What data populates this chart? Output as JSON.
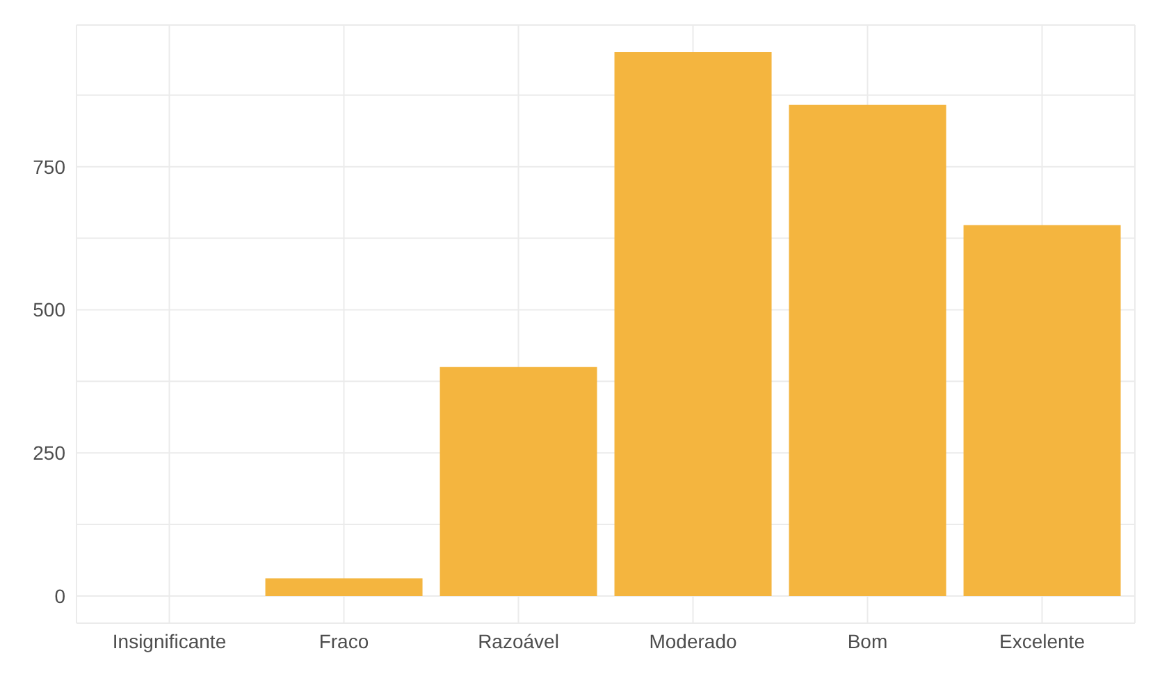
{
  "chart_data": {
    "type": "bar",
    "categories": [
      "Insignificante",
      "Fraco",
      "Razoável",
      "Moderado",
      "Bom",
      "Excelente"
    ],
    "values": [
      0,
      31,
      400,
      950,
      858,
      648
    ],
    "color": "#f4b53f",
    "ylim": [
      -47.5,
      997.5
    ],
    "yticks": [
      0,
      {
        "value": 125,
        "label": null
      },
      250,
      {
        "value": 375,
        "label": null
      },
      500,
      {
        "value": 625,
        "label": null
      },
      750,
      {
        "value": 875,
        "label": null
      }
    ],
    "grid": true
  }
}
